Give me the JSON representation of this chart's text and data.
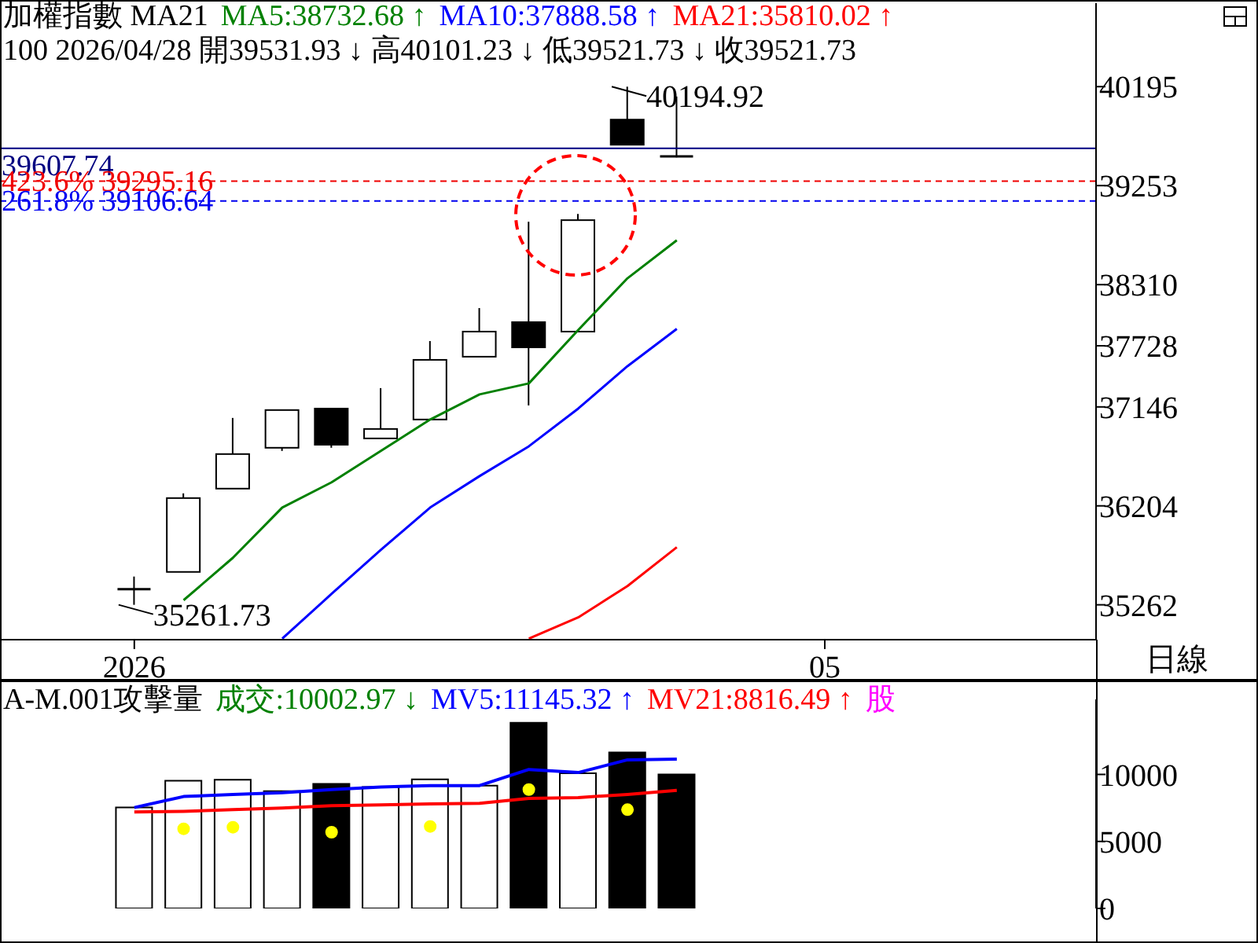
{
  "chart_data": [
    {
      "type": "candlestick",
      "title": "加權指數 MA21",
      "subtitle": "100 2026/04/28 開39531.93 ↓ 高40101.23 ↓ 低39521.73 ↓ 收39521.73",
      "categories": [
        null,
        null,
        "2026",
        null,
        null,
        null,
        null,
        null,
        null,
        null,
        null,
        null,
        null,
        null,
        null,
        null,
        "05",
        null,
        null,
        null,
        null,
        null
      ],
      "ohlc": [
        null,
        null,
        [
          35411,
          35531,
          35261.73,
          35411
        ],
        [
          35575,
          36323,
          35575,
          36278
        ],
        [
          36368,
          37041,
          36368,
          36697
        ],
        [
          36757,
          37116,
          36727,
          37116
        ],
        [
          37130,
          37130,
          36757,
          36786
        ],
        [
          36846,
          37325,
          36846,
          36936
        ],
        [
          37026,
          37773,
          37026,
          37594
        ],
        [
          37624,
          38087,
          37624,
          37863
        ],
        [
          37953,
          38909,
          37160,
          37713
        ],
        [
          37863,
          38984,
          37863,
          38924
        ],
        [
          39881,
          40194.92,
          39642,
          39642
        ],
        [
          39531.93,
          40101.23,
          39521.73,
          39521.73
        ],
        null,
        null,
        null,
        null,
        null,
        null,
        null,
        null
      ],
      "colors": [
        null,
        null,
        "#000000",
        "#ffffff",
        "#ffffff",
        "#ffffff",
        "#000000",
        "#ffffff",
        "#ffffff",
        "#ffffff",
        "#000000",
        "#ffffff",
        "#000000",
        "#000000",
        null,
        null,
        null,
        null,
        null,
        null,
        null,
        null
      ],
      "series": [
        {
          "name": "MA5:38732.68 ↑",
          "type": "line",
          "color": "#008000",
          "values": [
            null,
            null,
            null,
            35306,
            35710,
            36188,
            36428,
            36727,
            37026,
            37265,
            37370,
            37878,
            38371,
            38732.68,
            null,
            null,
            null,
            null,
            null,
            null,
            null,
            null
          ]
        },
        {
          "name": "MA10:37888.58 ↑",
          "type": "line",
          "color": "#0000ff",
          "values": [
            null,
            null,
            null,
            null,
            null,
            34940,
            35366,
            35785,
            36188,
            36487,
            36771,
            37130,
            37534,
            37888.58,
            null,
            null,
            null,
            null,
            null,
            null,
            null,
            null
          ]
        },
        {
          "name": "MA21:35810.02 ↑",
          "type": "line",
          "color": "#ff0000",
          "values": [
            null,
            null,
            null,
            null,
            null,
            null,
            null,
            null,
            null,
            null,
            34940,
            35142,
            35441,
            35810.02,
            null,
            null,
            null,
            null,
            null,
            null,
            null,
            null
          ]
        }
      ],
      "ylim": [
        34930,
        40990
      ],
      "yticks": [
        35262,
        36204,
        37146,
        37728,
        38310,
        39253,
        40195
      ],
      "ref_lines": [
        {
          "axis": "y",
          "value": 39607.74,
          "label": "39607.74",
          "color": "#000080",
          "line_style": "solid"
        },
        {
          "axis": "y",
          "value": 39295.16,
          "label": "423.6% 39295.16",
          "color": "#f00000",
          "line_style": "dashed"
        },
        {
          "axis": "y",
          "value": 39106.64,
          "label": "261.8% 39106.64",
          "color": "#0000f0",
          "line_style": "dashed"
        }
      ],
      "annotations": [
        "40194.92",
        "35261.73",
        "日線"
      ],
      "legend": "top left"
    },
    {
      "type": "bar",
      "title": "A-M.001攻擊量",
      "categories": [
        null,
        null,
        "2026",
        null,
        null,
        null,
        null,
        null,
        null,
        null,
        null,
        null,
        null,
        null,
        null,
        null,
        "05",
        null,
        null,
        null,
        null,
        null
      ],
      "series": [
        {
          "name": "成交:10002.97 ↓",
          "color": "#008000",
          "colors": [
            null,
            null,
            "#ffffff",
            "#ffffff",
            "#ffffff",
            "#ffffff",
            "#000000",
            "#ffffff",
            "#ffffff",
            "#ffffff",
            "#000000",
            "#ffffff",
            "#000000",
            "#000000",
            null,
            null,
            null,
            null,
            null,
            null,
            null,
            null
          ],
          "values": [
            null,
            null,
            7530,
            9530,
            9600,
            8750,
            9290,
            9060,
            9640,
            9170,
            13850,
            10080,
            11640,
            10002.97,
            null,
            null,
            null,
            null,
            null,
            null,
            null,
            null
          ]
        },
        {
          "name": "MV5:11145.32 ↑",
          "type": "line",
          "color": "#0000ff",
          "values": [
            null,
            null,
            7530,
            8350,
            8510,
            8630,
            8870,
            9060,
            9170,
            9170,
            10370,
            10140,
            11090,
            11145.32,
            null,
            null,
            null,
            null,
            null,
            null,
            null,
            null
          ]
        },
        {
          "name": "MV21:8816.49 ↑",
          "type": "line",
          "color": "#ff0000",
          "values": [
            null,
            null,
            7200,
            7250,
            7370,
            7490,
            7670,
            7720,
            7800,
            7850,
            8210,
            8270,
            8510,
            8816.49,
            null,
            null,
            null,
            null,
            null,
            null,
            null,
            null
          ]
        },
        {
          "type": "scatter",
          "color": "#ffff00",
          "marker": "circle",
          "values": [
            null,
            null,
            null,
            5940,
            6060,
            null,
            5690,
            null,
            6120,
            null,
            8870,
            null,
            7370,
            null,
            null,
            null,
            null,
            null,
            null,
            null,
            null,
            null
          ]
        }
      ],
      "ylim": [
        0,
        15600
      ],
      "yticks": [
        0,
        5000,
        10000
      ],
      "tick_labels": "y",
      "legend": "top left",
      "annotations": [
        "股"
      ]
    }
  ]
}
